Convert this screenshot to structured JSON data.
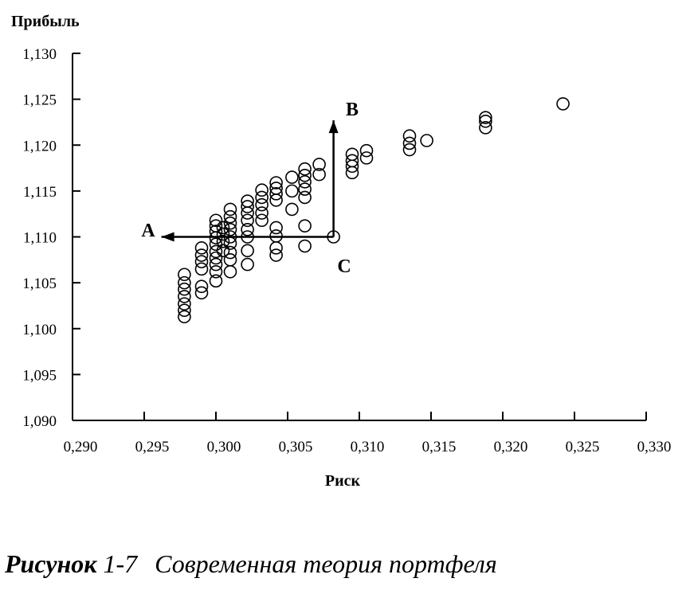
{
  "chart_data": {
    "type": "scatter",
    "ylabel": "Прибыль",
    "xlabel": "Риск",
    "xlim": [
      0.29,
      0.33
    ],
    "ylim": [
      1.09,
      1.13
    ],
    "x_ticks": [
      "0,290",
      "0,295",
      "0,300",
      "0,305",
      "0,310",
      "0,315",
      "0,320",
      "0,325",
      "0,330"
    ],
    "y_ticks": [
      "1,090",
      "1,095",
      "1,100",
      "1,105",
      "1,110",
      "1,115",
      "1,120",
      "1,125",
      "1,130"
    ],
    "grid": false,
    "annotations": {
      "A": {
        "label": "A",
        "x": 0.2963,
        "y": 1.11
      },
      "B": {
        "label": "B",
        "x": 0.308,
        "y": 1.1235
      },
      "C": {
        "label": "C",
        "x": 0.308,
        "y": 1.1075
      }
    },
    "arrows": [
      {
        "from": [
          0.3082,
          1.11
        ],
        "to": [
          0.2962,
          1.11
        ]
      },
      {
        "from": [
          0.3082,
          1.11
        ],
        "to": [
          0.3082,
          1.1227
        ]
      }
    ],
    "points": [
      [
        0.2978,
        1.1013
      ],
      [
        0.2978,
        1.102
      ],
      [
        0.2978,
        1.1027
      ],
      [
        0.2978,
        1.1035
      ],
      [
        0.2978,
        1.1043
      ],
      [
        0.2978,
        1.105
      ],
      [
        0.2978,
        1.1059
      ],
      [
        0.299,
        1.1039
      ],
      [
        0.299,
        1.1046
      ],
      [
        0.299,
        1.1065
      ],
      [
        0.299,
        1.1073
      ],
      [
        0.299,
        1.108
      ],
      [
        0.299,
        1.1088
      ],
      [
        0.3,
        1.1052
      ],
      [
        0.3,
        1.1062
      ],
      [
        0.3,
        1.107
      ],
      [
        0.3,
        1.1077
      ],
      [
        0.3,
        1.1084
      ],
      [
        0.3,
        1.1092
      ],
      [
        0.3,
        1.1099
      ],
      [
        0.3,
        1.1106
      ],
      [
        0.3,
        1.1112
      ],
      [
        0.3,
        1.1118
      ],
      [
        0.3005,
        1.1085
      ],
      [
        0.3005,
        1.1095
      ],
      [
        0.3005,
        1.1103
      ],
      [
        0.3005,
        1.111
      ],
      [
        0.301,
        1.1062
      ],
      [
        0.301,
        1.1075
      ],
      [
        0.301,
        1.1083
      ],
      [
        0.301,
        1.1093
      ],
      [
        0.301,
        1.11
      ],
      [
        0.301,
        1.1108
      ],
      [
        0.301,
        1.1115
      ],
      [
        0.301,
        1.1122
      ],
      [
        0.301,
        1.113
      ],
      [
        0.3022,
        1.107
      ],
      [
        0.3022,
        1.1085
      ],
      [
        0.3022,
        1.11
      ],
      [
        0.3022,
        1.1108
      ],
      [
        0.3022,
        1.1118
      ],
      [
        0.3022,
        1.1126
      ],
      [
        0.3022,
        1.1133
      ],
      [
        0.3022,
        1.1139
      ],
      [
        0.3032,
        1.1118
      ],
      [
        0.3032,
        1.1126
      ],
      [
        0.3032,
        1.1135
      ],
      [
        0.3032,
        1.1143
      ],
      [
        0.3032,
        1.1151
      ],
      [
        0.3042,
        1.108
      ],
      [
        0.3042,
        1.1088
      ],
      [
        0.3042,
        1.1101
      ],
      [
        0.3042,
        1.111
      ],
      [
        0.3042,
        1.114
      ],
      [
        0.3042,
        1.1147
      ],
      [
        0.3042,
        1.1153
      ],
      [
        0.3042,
        1.1159
      ],
      [
        0.3053,
        1.113
      ],
      [
        0.3053,
        1.115
      ],
      [
        0.3053,
        1.1165
      ],
      [
        0.3062,
        1.109
      ],
      [
        0.3062,
        1.1112
      ],
      [
        0.3062,
        1.1143
      ],
      [
        0.3062,
        1.1152
      ],
      [
        0.3062,
        1.116
      ],
      [
        0.3062,
        1.1167
      ],
      [
        0.3062,
        1.1174
      ],
      [
        0.3072,
        1.1168
      ],
      [
        0.3072,
        1.1179
      ],
      [
        0.3082,
        1.11
      ],
      [
        0.3095,
        1.117
      ],
      [
        0.3095,
        1.1177
      ],
      [
        0.3095,
        1.1183
      ],
      [
        0.3095,
        1.119
      ],
      [
        0.3105,
        1.1186
      ],
      [
        0.3105,
        1.1194
      ],
      [
        0.3135,
        1.1195
      ],
      [
        0.3135,
        1.1202
      ],
      [
        0.3135,
        1.121
      ],
      [
        0.3147,
        1.1205
      ],
      [
        0.3188,
        1.1219
      ],
      [
        0.3188,
        1.1226
      ],
      [
        0.3188,
        1.123
      ],
      [
        0.3242,
        1.1245
      ]
    ]
  },
  "caption": {
    "figure": "Рисунок",
    "number": "1-7",
    "title": "Современная теория портфеля"
  }
}
